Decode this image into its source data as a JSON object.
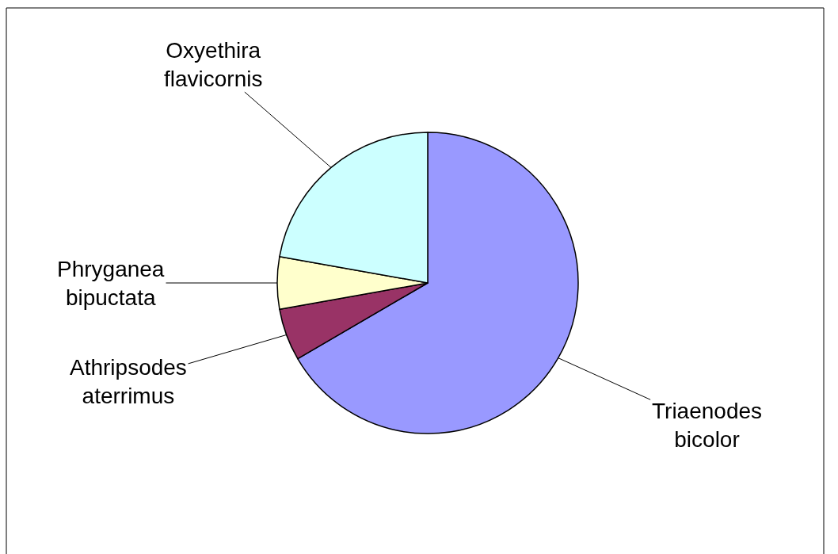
{
  "chart_data": {
    "type": "pie",
    "categories": [
      "Triaenodes bicolor",
      "Athripsodes aterrimus",
      "Phryganea bipuctata",
      "Oxyethira flavicornis"
    ],
    "values": [
      66.6,
      5.6,
      5.6,
      22.2
    ],
    "colors": [
      "#9999ff",
      "#993366",
      "#ffffcc",
      "#ccffff"
    ]
  }
}
